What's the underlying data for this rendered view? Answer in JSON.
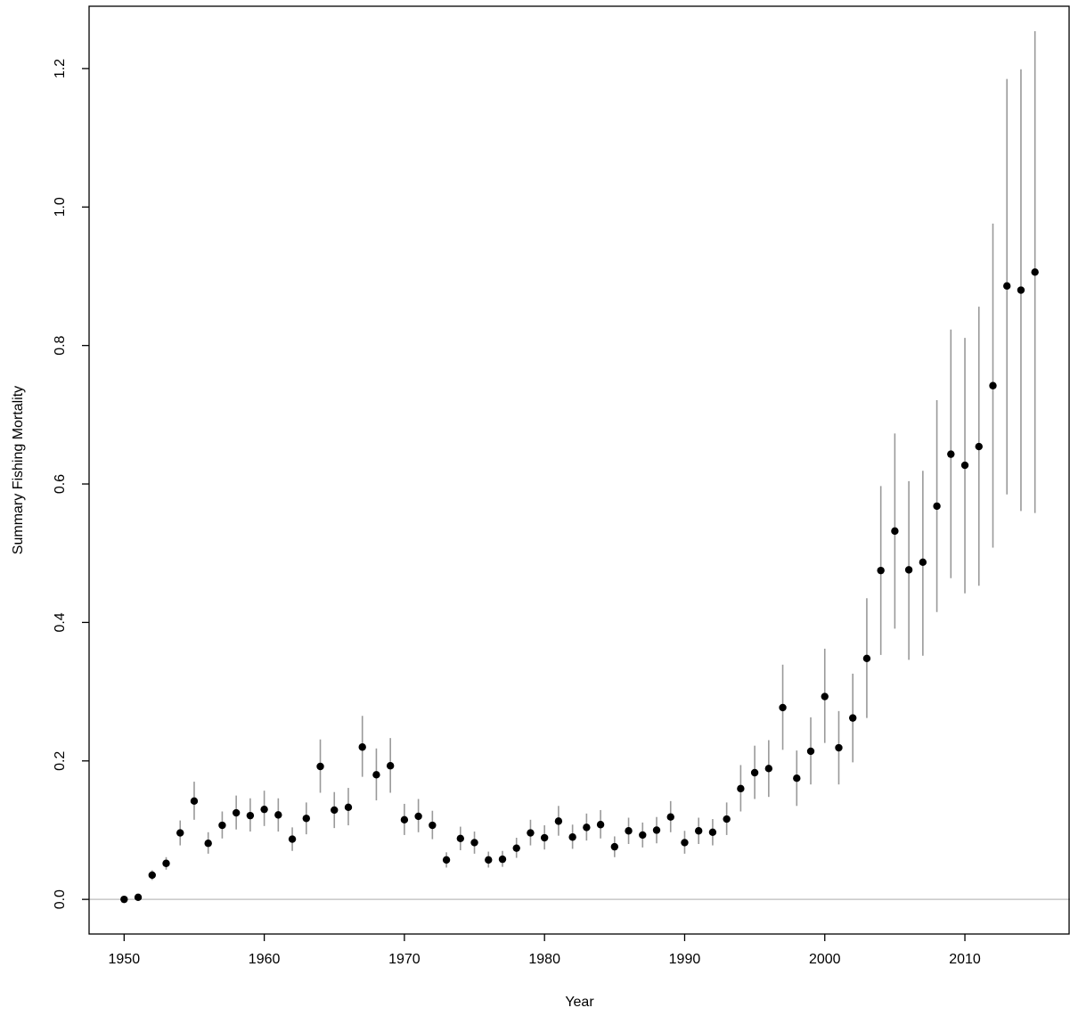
{
  "chart_data": {
    "type": "scatter",
    "title": "",
    "xlabel": "Year",
    "ylabel": "Summary Fishing Mortality",
    "xlim": [
      1947.5,
      2017.5
    ],
    "ylim": [
      -0.05,
      1.29
    ],
    "x_ticks": [
      1950,
      1960,
      1970,
      1980,
      1990,
      2000,
      2010
    ],
    "x_tick_labels": [
      "1950",
      "1960",
      "1970",
      "1980",
      "1990",
      "2000",
      "2010"
    ],
    "y_ticks": [
      0.0,
      0.2,
      0.4,
      0.6,
      0.8,
      1.0,
      1.2
    ],
    "y_tick_labels": [
      "0.0",
      "0.2",
      "0.4",
      "0.6",
      "0.8",
      "1.0",
      "1.2"
    ],
    "reference_line_y": 0,
    "grid": false,
    "legend": "none",
    "colors": {
      "point": "#000000",
      "error_bar": "#999999",
      "reference_line": "#bbbbbb",
      "axis": "#000000"
    },
    "series": [
      {
        "x": [
          1950,
          1951,
          1952,
          1953,
          1954,
          1955,
          1956,
          1957,
          1958,
          1959,
          1960,
          1961,
          1962,
          1963,
          1964,
          1965,
          1966,
          1967,
          1968,
          1969,
          1970,
          1971,
          1972,
          1973,
          1974,
          1975,
          1976,
          1977,
          1978,
          1979,
          1980,
          1981,
          1982,
          1983,
          1984,
          1985,
          1986,
          1987,
          1988,
          1989,
          1990,
          1991,
          1992,
          1993,
          1994,
          1995,
          1996,
          1997,
          1998,
          1999,
          2000,
          2001,
          2002,
          2003,
          2004,
          2005,
          2006,
          2007,
          2008,
          2009,
          2010,
          2011,
          2012,
          2013,
          2014,
          2015
        ],
        "y": [
          0.0,
          0.003,
          0.035,
          0.052,
          0.096,
          0.142,
          0.081,
          0.107,
          0.125,
          0.121,
          0.13,
          0.122,
          0.087,
          0.117,
          0.192,
          0.129,
          0.133,
          0.22,
          0.18,
          0.193,
          0.115,
          0.12,
          0.107,
          0.057,
          0.088,
          0.082,
          0.057,
          0.058,
          0.074,
          0.096,
          0.089,
          0.113,
          0.09,
          0.104,
          0.108,
          0.076,
          0.099,
          0.093,
          0.1,
          0.119,
          0.082,
          0.099,
          0.097,
          0.116,
          0.16,
          0.183,
          0.189,
          0.277,
          0.175,
          0.214,
          0.293,
          0.219,
          0.262,
          0.348,
          0.475,
          0.532,
          0.476,
          0.487,
          0.568,
          0.643,
          0.627,
          0.654,
          0.742,
          0.886,
          0.88,
          0.906
        ],
        "lower": [
          0.0,
          0.0,
          0.028,
          0.043,
          0.078,
          0.115,
          0.066,
          0.088,
          0.101,
          0.098,
          0.106,
          0.098,
          0.07,
          0.094,
          0.154,
          0.103,
          0.107,
          0.177,
          0.143,
          0.154,
          0.093,
          0.097,
          0.087,
          0.046,
          0.071,
          0.066,
          0.046,
          0.047,
          0.06,
          0.078,
          0.072,
          0.092,
          0.073,
          0.085,
          0.088,
          0.061,
          0.08,
          0.075,
          0.081,
          0.097,
          0.066,
          0.08,
          0.078,
          0.093,
          0.127,
          0.145,
          0.148,
          0.216,
          0.135,
          0.166,
          0.226,
          0.166,
          0.198,
          0.262,
          0.353,
          0.391,
          0.346,
          0.352,
          0.415,
          0.464,
          0.442,
          0.453,
          0.508,
          0.585,
          0.561,
          0.558
        ],
        "upper": [
          0.002,
          0.005,
          0.042,
          0.061,
          0.114,
          0.17,
          0.097,
          0.127,
          0.15,
          0.146,
          0.157,
          0.146,
          0.104,
          0.14,
          0.231,
          0.155,
          0.161,
          0.265,
          0.218,
          0.233,
          0.138,
          0.145,
          0.128,
          0.068,
          0.105,
          0.098,
          0.069,
          0.07,
          0.089,
          0.115,
          0.107,
          0.135,
          0.108,
          0.124,
          0.129,
          0.091,
          0.118,
          0.111,
          0.119,
          0.142,
          0.099,
          0.118,
          0.116,
          0.14,
          0.194,
          0.222,
          0.23,
          0.339,
          0.215,
          0.263,
          0.362,
          0.272,
          0.326,
          0.435,
          0.597,
          0.673,
          0.604,
          0.619,
          0.721,
          0.823,
          0.811,
          0.856,
          0.976,
          1.185,
          1.199,
          1.254
        ]
      }
    ]
  }
}
